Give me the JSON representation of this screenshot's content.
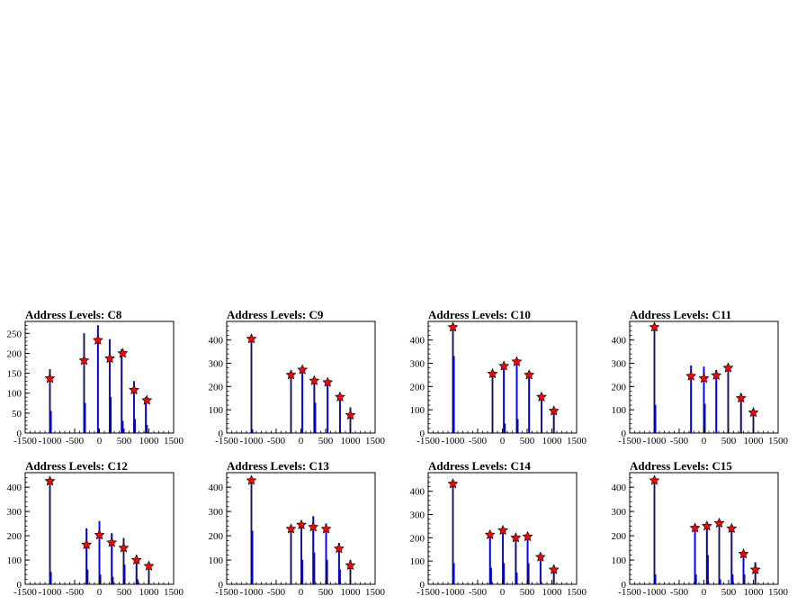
{
  "figure": {
    "background": "#ffffff",
    "frame_color": "#000000",
    "hist_color": "#0000ff",
    "marker_color": "#ff0000"
  },
  "chart_data": [
    {
      "type": "bar",
      "title": "Address Levels: C8",
      "xlim": [
        -1500,
        1500
      ],
      "ylim": [
        0,
        280
      ],
      "xticks": [
        "-1500",
        "-1000",
        "-500",
        "0",
        "500",
        "1000",
        "1500"
      ],
      "yticks": [
        "0",
        "50",
        "100",
        "150",
        "200",
        "250"
      ],
      "series": [
        {
          "type": "bar",
          "x": [
            -1000,
            -980,
            -310,
            -290,
            -30,
            -10,
            210,
            230,
            450,
            470,
            700,
            720,
            940,
            960
          ],
          "values": [
            160,
            55,
            250,
            75,
            270,
            10,
            235,
            90,
            210,
            30,
            130,
            35,
            90,
            20
          ]
        },
        {
          "type": "scatter",
          "x": [
            -1000,
            -310,
            -30,
            210,
            470,
            700,
            960
          ],
          "values": [
            137,
            182,
            233,
            187,
            200,
            108,
            82
          ]
        }
      ]
    },
    {
      "type": "bar",
      "title": "Address Levels: C9",
      "xlim": [
        -1500,
        1500
      ],
      "ylim": [
        0,
        480
      ],
      "xticks": [
        "-1500",
        "-1000",
        "-500",
        "0",
        "500",
        "1000",
        "1500"
      ],
      "yticks": [
        "0",
        "100",
        "200",
        "300",
        "400"
      ],
      "series": [
        {
          "type": "bar",
          "x": [
            -1000,
            -980,
            -200,
            30,
            270,
            290,
            540,
            790,
            1000
          ],
          "values": [
            410,
            15,
            260,
            270,
            240,
            130,
            230,
            170,
            110
          ]
        },
        {
          "type": "scatter",
          "x": [
            -1000,
            -200,
            30,
            270,
            540,
            790,
            1000
          ],
          "values": [
            405,
            250,
            272,
            225,
            218,
            155,
            77
          ]
        }
      ]
    },
    {
      "type": "bar",
      "title": "Address Levels: C10",
      "xlim": [
        -1500,
        1500
      ],
      "ylim": [
        0,
        480
      ],
      "xticks": [
        "-1500",
        "-1000",
        "-500",
        "0",
        "500",
        "1000",
        "1500"
      ],
      "yticks": [
        "0",
        "100",
        "200",
        "300",
        "400"
      ],
      "series": [
        {
          "type": "bar",
          "x": [
            -1000,
            -980,
            -200,
            30,
            50,
            290,
            310,
            540,
            790,
            1040
          ],
          "values": [
            460,
            330,
            260,
            300,
            40,
            320,
            60,
            265,
            160,
            100
          ]
        },
        {
          "type": "scatter",
          "x": [
            -1000,
            -200,
            30,
            290,
            540,
            790,
            1040
          ],
          "values": [
            455,
            255,
            288,
            307,
            250,
            155,
            95
          ]
        }
      ]
    },
    {
      "type": "bar",
      "title": "Address Levels: C11",
      "xlim": [
        -1500,
        1500
      ],
      "ylim": [
        0,
        480
      ],
      "xticks": [
        "-1500",
        "-1000",
        "-500",
        "0",
        "500",
        "1000",
        "1500"
      ],
      "yticks": [
        "0",
        "100",
        "200",
        "300",
        "400"
      ],
      "series": [
        {
          "type": "bar",
          "x": [
            -1000,
            -980,
            -260,
            0,
            20,
            250,
            490,
            750,
            1000
          ],
          "values": [
            460,
            120,
            290,
            285,
            125,
            270,
            290,
            170,
            100
          ]
        },
        {
          "type": "scatter",
          "x": [
            -1000,
            -260,
            0,
            250,
            490,
            750,
            1000
          ],
          "values": [
            455,
            245,
            235,
            248,
            280,
            150,
            88
          ]
        }
      ]
    },
    {
      "type": "bar",
      "title": "Address Levels: C12",
      "xlim": [
        -1500,
        1500
      ],
      "ylim": [
        0,
        460
      ],
      "xticks": [
        "-1500",
        "-1000",
        "-500",
        "0",
        "500",
        "1000",
        "1500"
      ],
      "yticks": [
        "0",
        "100",
        "200",
        "300",
        "400"
      ],
      "series": [
        {
          "type": "bar",
          "x": [
            -1000,
            -980,
            -260,
            -240,
            0,
            20,
            250,
            270,
            490,
            510,
            750,
            770,
            1000
          ],
          "values": [
            430,
            50,
            230,
            60,
            260,
            40,
            210,
            30,
            190,
            80,
            120,
            20,
            90
          ]
        },
        {
          "type": "scatter",
          "x": [
            -1000,
            -260,
            0,
            250,
            490,
            750,
            1000
          ],
          "values": [
            425,
            163,
            203,
            172,
            150,
            100,
            75
          ]
        }
      ]
    },
    {
      "type": "bar",
      "title": "Address Levels: C13",
      "xlim": [
        -1500,
        1500
      ],
      "ylim": [
        0,
        460
      ],
      "xticks": [
        "-1500",
        "-1000",
        "-500",
        "0",
        "500",
        "1000",
        "1500"
      ],
      "yticks": [
        "0",
        "100",
        "200",
        "300",
        "400"
      ],
      "series": [
        {
          "type": "bar",
          "x": [
            -1000,
            -980,
            -200,
            10,
            30,
            250,
            270,
            510,
            530,
            770,
            790,
            1000
          ],
          "values": [
            430,
            220,
            240,
            260,
            100,
            280,
            130,
            250,
            100,
            170,
            60,
            100
          ]
        },
        {
          "type": "scatter",
          "x": [
            -1000,
            -200,
            10,
            250,
            510,
            770,
            1000
          ],
          "values": [
            428,
            228,
            245,
            236,
            228,
            147,
            78
          ]
        }
      ]
    },
    {
      "type": "bar",
      "title": "Address Levels: C14",
      "xlim": [
        -1500,
        1500
      ],
      "ylim": [
        0,
        480
      ],
      "xticks": [
        "-1500",
        "-1000",
        "-500",
        "0",
        "500",
        "1000",
        "1500"
      ],
      "yticks": [
        "0",
        "100",
        "200",
        "300",
        "400"
      ],
      "series": [
        {
          "type": "bar",
          "x": [
            -1000,
            -980,
            -250,
            -230,
            10,
            30,
            270,
            290,
            510,
            530,
            770,
            1040
          ],
          "values": [
            440,
            90,
            220,
            70,
            240,
            90,
            210,
            50,
            220,
            90,
            130,
            80
          ]
        },
        {
          "type": "scatter",
          "x": [
            -1000,
            -250,
            10,
            270,
            510,
            770,
            1040
          ],
          "values": [
            432,
            213,
            232,
            200,
            205,
            117,
            63
          ]
        }
      ]
    },
    {
      "type": "bar",
      "title": "Address Levels: C15",
      "xlim": [
        -1500,
        1500
      ],
      "ylim": [
        0,
        460
      ],
      "xticks": [
        "-1500",
        "-1000",
        "-500",
        "0",
        "500",
        "1000",
        "1500"
      ],
      "yticks": [
        "0",
        "100",
        "200",
        "300",
        "400"
      ],
      "series": [
        {
          "type": "bar",
          "x": [
            -1000,
            -980,
            -180,
            -160,
            60,
            80,
            310,
            330,
            560,
            580,
            800,
            820,
            1040
          ],
          "values": [
            430,
            40,
            240,
            40,
            250,
            120,
            260,
            20,
            240,
            40,
            130,
            40,
            90
          ]
        },
        {
          "type": "scatter",
          "x": [
            -1000,
            -180,
            60,
            310,
            560,
            800,
            1040
          ],
          "values": [
            428,
            232,
            240,
            252,
            230,
            125,
            60
          ]
        }
      ]
    }
  ]
}
